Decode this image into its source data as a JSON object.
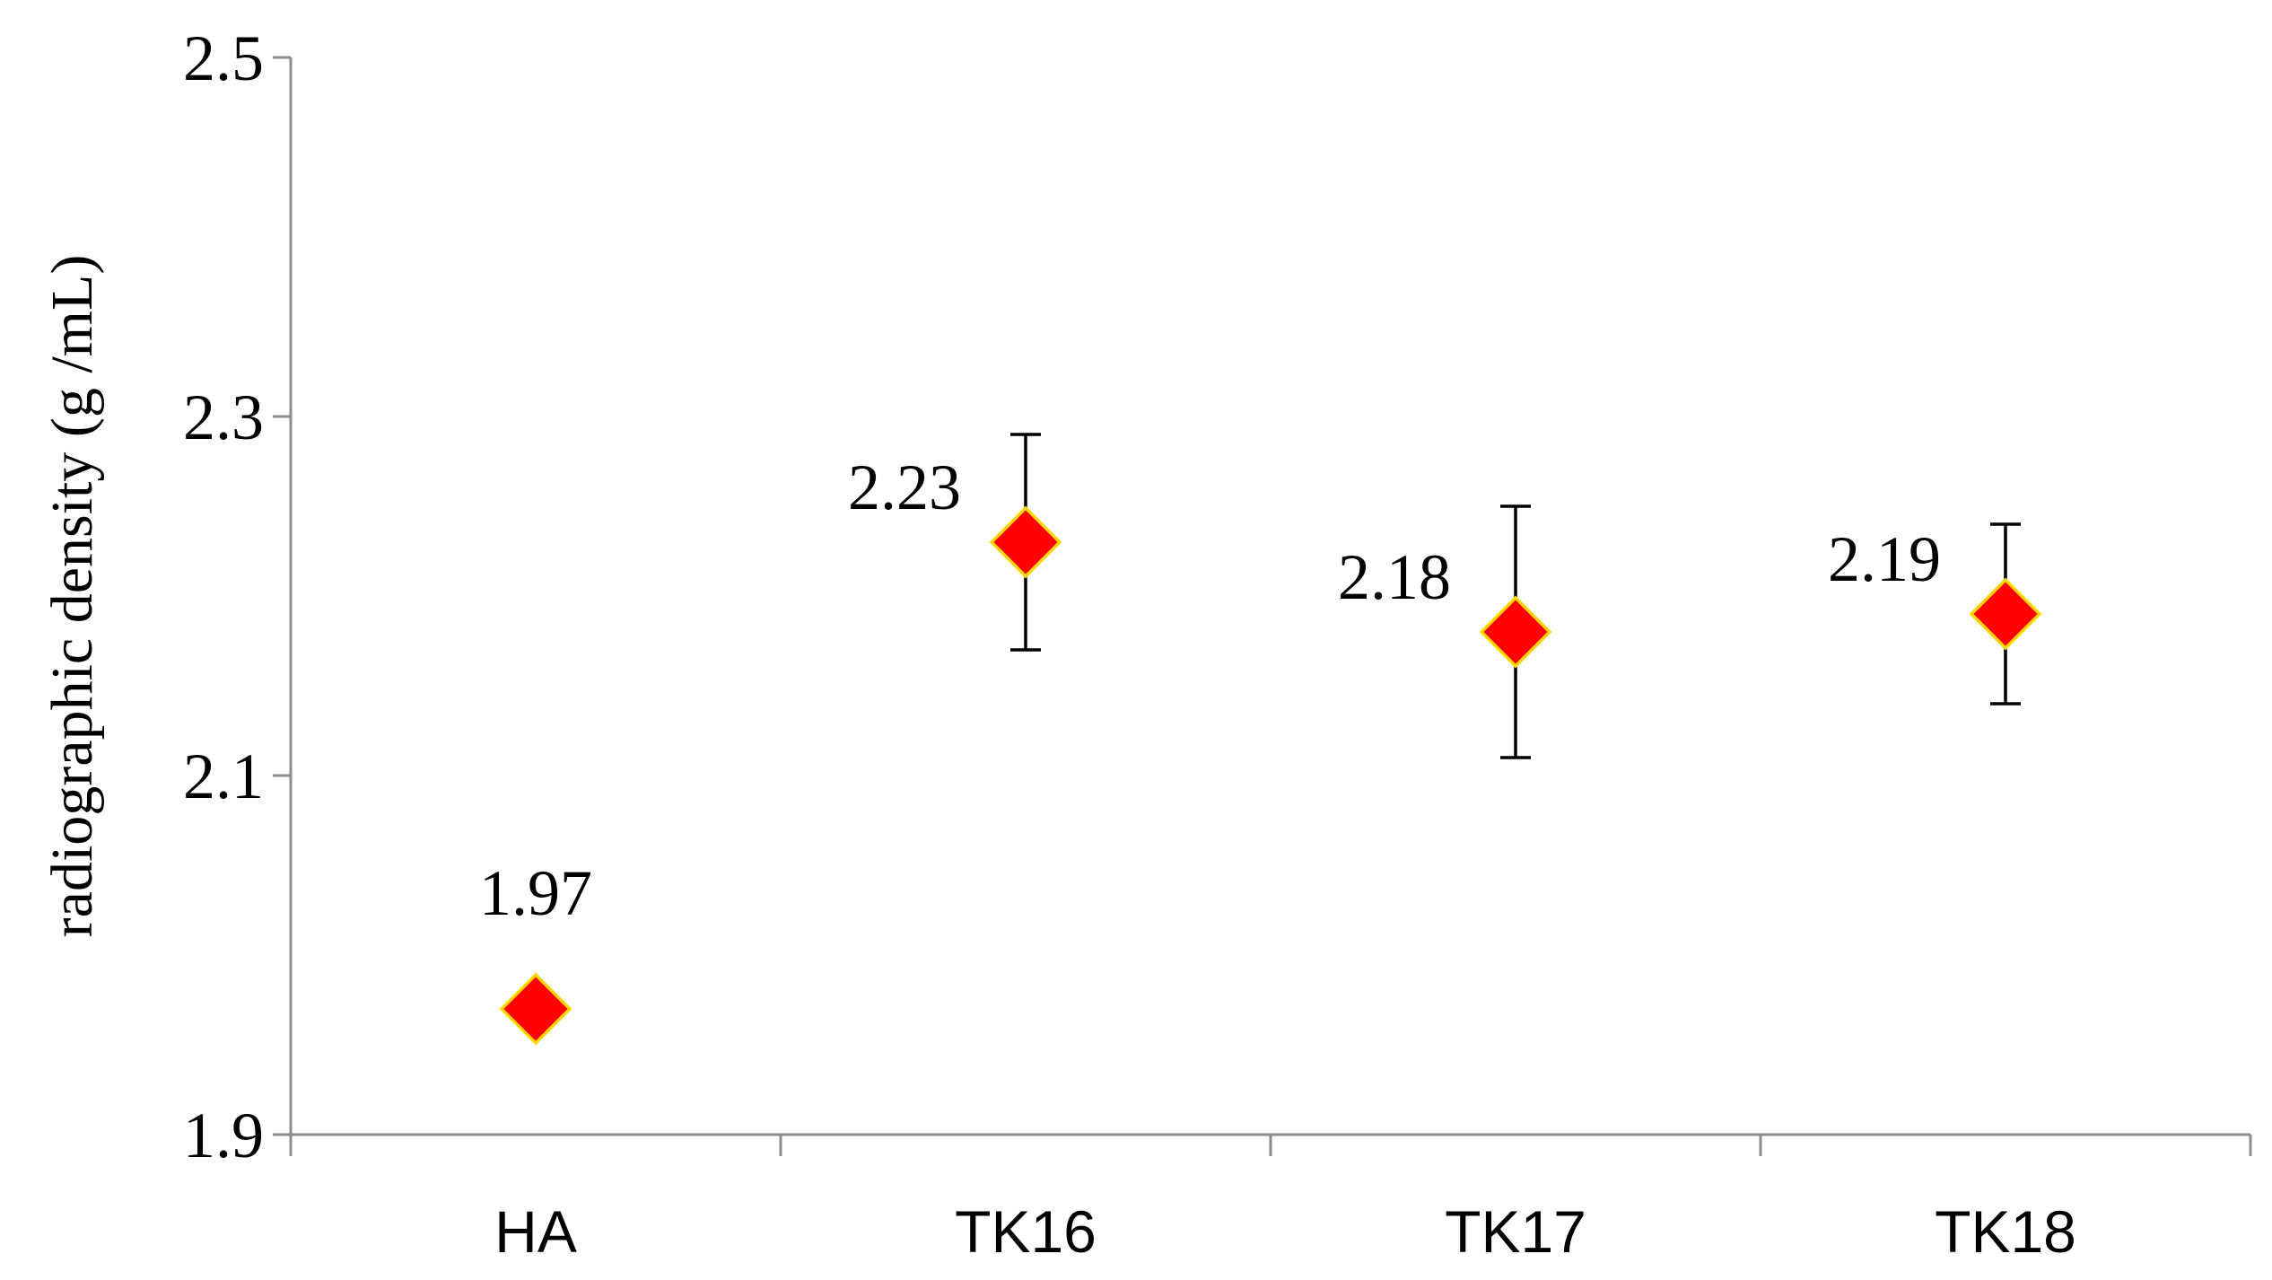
{
  "chart_data": {
    "type": "scatter",
    "title": "",
    "xlabel": "",
    "ylabel": "radiographic density (g /mL)",
    "ylim": [
      1.9,
      2.5
    ],
    "yticks": [
      "1.9",
      "2.1",
      "2.3",
      "2.5"
    ],
    "categories": [
      "HA",
      "TK16",
      "TK17",
      "TK18"
    ],
    "series": [
      {
        "values": [
          1.97,
          2.23,
          2.18,
          2.19
        ],
        "error_low": [
          null,
          2.17,
          2.11,
          2.14
        ],
        "error_high": [
          null,
          2.29,
          2.25,
          2.24
        ],
        "data_labels": [
          "1.97",
          "2.23",
          "2.18",
          "2.19"
        ],
        "marker": "diamond",
        "color": "#ff0000",
        "edge_color": "#ffd700"
      }
    ],
    "grid": false,
    "legend": "none"
  }
}
